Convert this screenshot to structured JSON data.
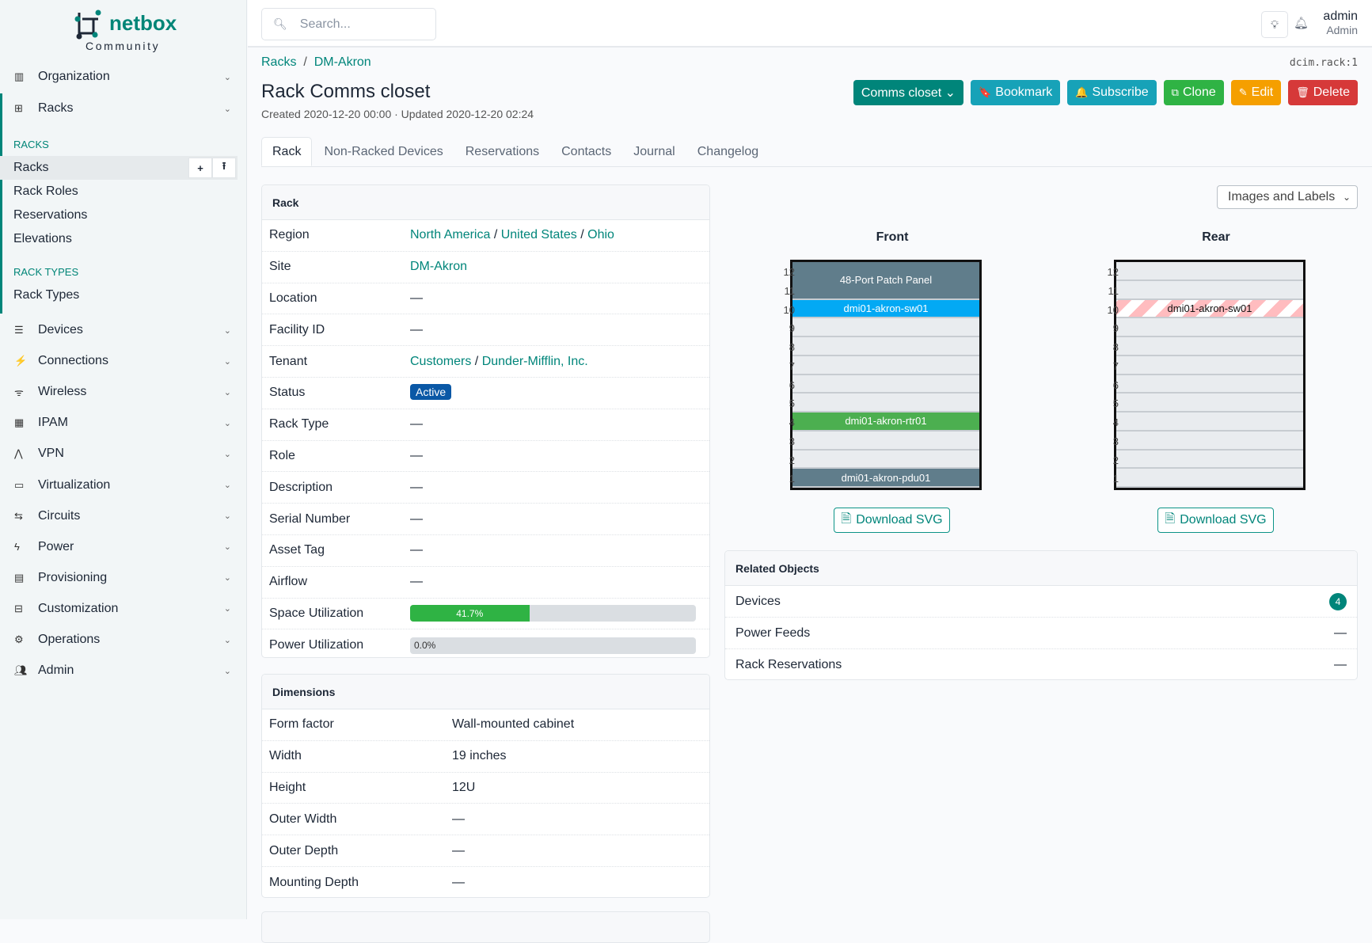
{
  "brand": {
    "name": "netbox",
    "edition": "Community"
  },
  "sidebar": {
    "top": [
      {
        "label": "Organization",
        "icon": "building-icon"
      },
      {
        "label": "Racks",
        "icon": "rack-icon"
      }
    ],
    "sections": [
      {
        "title": "RACKS",
        "items": [
          "Racks",
          "Rack Roles",
          "Reservations",
          "Elevations"
        ]
      },
      {
        "title": "RACK TYPES",
        "items": [
          "Rack Types"
        ]
      }
    ],
    "active": "Racks",
    "menus": [
      {
        "label": "Devices",
        "icon": "server-icon"
      },
      {
        "label": "Connections",
        "icon": "plug-icon"
      },
      {
        "label": "Wireless",
        "icon": "wifi-icon"
      },
      {
        "label": "IPAM",
        "icon": "ip-icon"
      },
      {
        "label": "VPN",
        "icon": "vpn-icon"
      },
      {
        "label": "Virtualization",
        "icon": "monitor-icon"
      },
      {
        "label": "Circuits",
        "icon": "circuit-icon"
      },
      {
        "label": "Power",
        "icon": "lightning-icon"
      },
      {
        "label": "Provisioning",
        "icon": "document-icon"
      },
      {
        "label": "Customization",
        "icon": "toolbox-icon"
      },
      {
        "label": "Operations",
        "icon": "cogs-icon"
      },
      {
        "label": "Admin",
        "icon": "users-icon"
      }
    ]
  },
  "topbar": {
    "search_placeholder": "Search...",
    "user": "admin",
    "role": "Admin"
  },
  "breadcrumb": [
    "Racks",
    "DM-Akron"
  ],
  "identifier": "dcim.rack:1",
  "title": "Rack Comms closet",
  "meta": "Created 2020-12-20 00:00 · Updated 2020-12-20 02:24",
  "actions": [
    {
      "label": "Comms closet ⌄",
      "color": "#00857a",
      "icon": ""
    },
    {
      "label": "Bookmark",
      "color": "#17a2b8",
      "icon": "🔖"
    },
    {
      "label": "Subscribe",
      "color": "#17a2b8",
      "icon": "🔔"
    },
    {
      "label": "Clone",
      "color": "#2fb344",
      "icon": "⧉"
    },
    {
      "label": "Edit",
      "color": "#f59f00",
      "icon": "✎"
    },
    {
      "label": "Delete",
      "color": "#d63939",
      "icon": "🗑"
    }
  ],
  "tabs": [
    "Rack",
    "Non-Racked Devices",
    "Reservations",
    "Contacts",
    "Journal",
    "Changelog"
  ],
  "rack_card": {
    "title": "Rack",
    "rows": [
      {
        "k": "Region",
        "links": [
          "North America",
          "United States",
          "Ohio"
        ]
      },
      {
        "k": "Site",
        "links": [
          "DM-Akron"
        ]
      },
      {
        "k": "Location",
        "v": "—"
      },
      {
        "k": "Facility ID",
        "v": "—"
      },
      {
        "k": "Tenant",
        "links": [
          "Customers",
          "Dunder-Mifflin, Inc."
        ]
      },
      {
        "k": "Status",
        "badge": "Active"
      },
      {
        "k": "Rack Type",
        "v": "—"
      },
      {
        "k": "Role",
        "v": "—"
      },
      {
        "k": "Description",
        "v": "—"
      },
      {
        "k": "Serial Number",
        "v": "—"
      },
      {
        "k": "Asset Tag",
        "v": "—"
      },
      {
        "k": "Airflow",
        "v": "—"
      },
      {
        "k": "Space Utilization",
        "progress": 41.7,
        "label": "41.7%"
      },
      {
        "k": "Power Utilization",
        "progress": 0,
        "label": "0.0%"
      }
    ]
  },
  "dimensions": {
    "title": "Dimensions",
    "rows": [
      {
        "k": "Form factor",
        "v": "Wall-mounted cabinet"
      },
      {
        "k": "Width",
        "v": "19 inches"
      },
      {
        "k": "Height",
        "v": "12U"
      },
      {
        "k": "Outer Width",
        "v": "—"
      },
      {
        "k": "Outer Depth",
        "v": "—"
      },
      {
        "k": "Mounting Depth",
        "v": "—"
      }
    ]
  },
  "elevation": {
    "view_select": "Images and Labels",
    "units": 12,
    "front": {
      "title": "Front",
      "devices": [
        {
          "name": "48-Port Patch Panel",
          "u": 11,
          "height": 2,
          "color": "#607d8b"
        },
        {
          "name": "dmi01-akron-sw01",
          "u": 10,
          "height": 1,
          "color": "#03a9f4"
        },
        {
          "name": "dmi01-akron-rtr01",
          "u": 4,
          "height": 1,
          "color": "#4caf50"
        },
        {
          "name": "dmi01-akron-pdu01",
          "u": 1,
          "height": 1,
          "color": "#607d8b"
        }
      ]
    },
    "rear": {
      "title": "Rear",
      "devices": [
        {
          "name": "dmi01-akron-sw01",
          "u": 10,
          "height": 1,
          "striped": true
        }
      ]
    },
    "download_label": "Download SVG"
  },
  "related": {
    "title": "Related Objects",
    "rows": [
      {
        "label": "Devices",
        "count": "4"
      },
      {
        "label": "Power Feeds",
        "count": "—"
      },
      {
        "label": "Rack Reservations",
        "count": "—"
      }
    ]
  }
}
